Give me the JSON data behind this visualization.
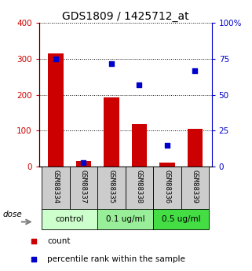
{
  "title": "GDS1809 / 1425712_at",
  "categories": [
    "GSM88334",
    "GSM88337",
    "GSM88335",
    "GSM88338",
    "GSM88336",
    "GSM88339"
  ],
  "bar_values": [
    315,
    15,
    192,
    118,
    12,
    105
  ],
  "scatter_values": [
    75,
    3,
    72,
    57,
    15,
    67
  ],
  "bar_color": "#cc0000",
  "scatter_color": "#0000cc",
  "ylim_left": [
    0,
    400
  ],
  "ylim_right": [
    0,
    100
  ],
  "yticks_left": [
    0,
    100,
    200,
    300,
    400
  ],
  "yticks_right": [
    0,
    25,
    50,
    75,
    100
  ],
  "dose_label": "dose",
  "legend_count": "count",
  "legend_pct": "percentile rank within the sample",
  "group_labels": [
    "control",
    "0.1 ug/ml",
    "0.5 ug/ml"
  ],
  "group_bg_colors": [
    "#ccffcc",
    "#99ee99",
    "#44dd44"
  ],
  "label_area_bg": "#cccccc",
  "background_color": "white"
}
